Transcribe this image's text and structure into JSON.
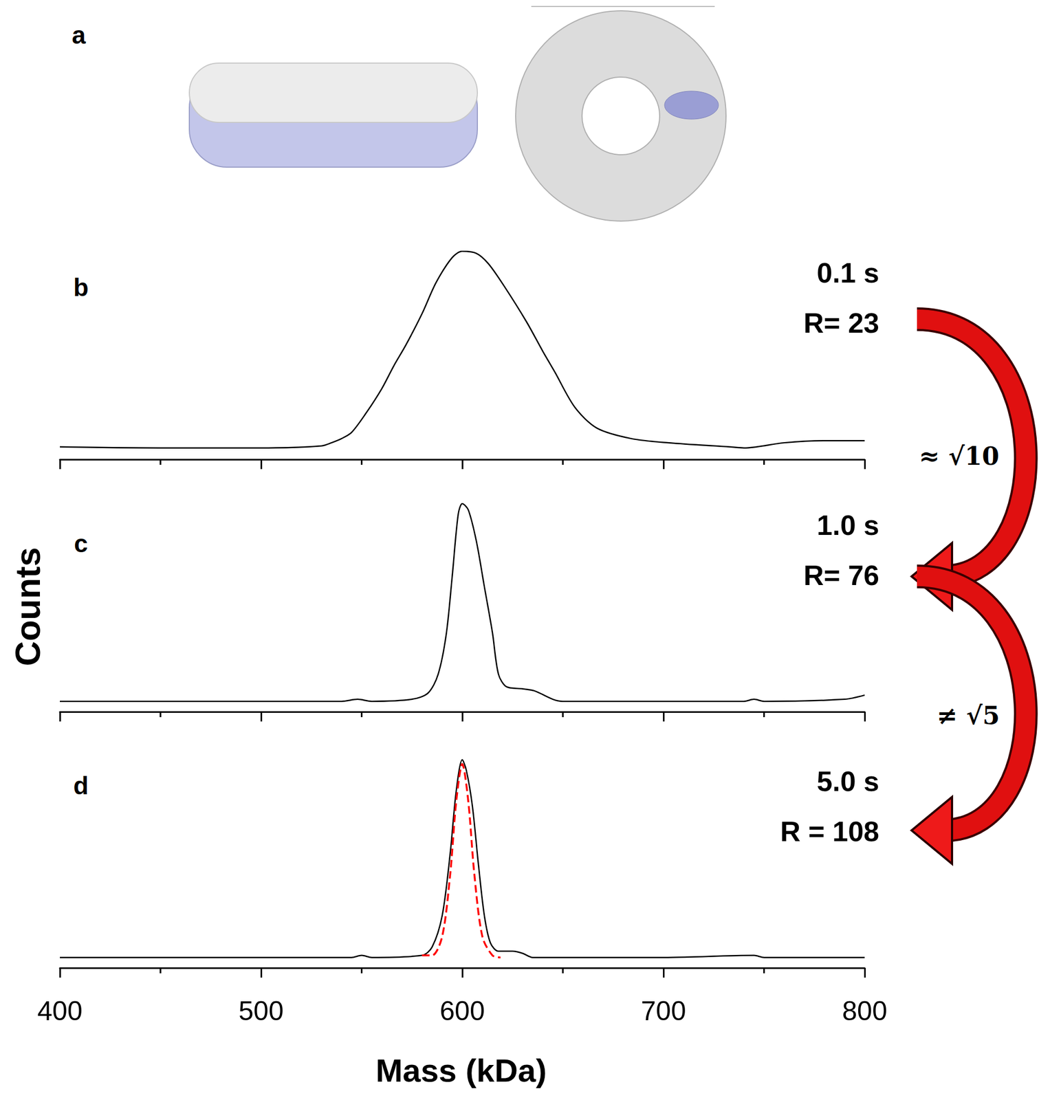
{
  "diagram": {
    "label": "a"
  },
  "arrows": [
    "≈ √10",
    "≠ √5"
  ],
  "chart_data": [
    {
      "type": "line",
      "panel": "b",
      "annotations": [
        "0.1 s",
        "R= 23"
      ],
      "xlim": [
        400,
        800
      ],
      "xticks": [
        400,
        500,
        600,
        700,
        800
      ],
      "ylim": [
        0,
        100
      ],
      "tick_labels": false,
      "series": [
        {
          "color": "#000000",
          "line_style": "solid",
          "x": [
            400,
            450,
            500,
            530,
            535,
            540,
            545,
            552,
            560,
            566,
            572,
            580,
            587,
            595,
            600,
            607,
            613,
            621,
            632,
            640,
            646,
            656,
            667,
            684,
            702,
            733,
            740,
            760,
            780,
            800
          ],
          "values": [
            6,
            5.5,
            5.5,
            6.5,
            8,
            10,
            13,
            22,
            34,
            45,
            55,
            70,
            85,
            97,
            100,
            99,
            94,
            83,
            66,
            52,
            42,
            25,
            15,
            10,
            8,
            6,
            5.5,
            8,
            9,
            9
          ]
        }
      ]
    },
    {
      "type": "line",
      "panel": "c",
      "annotations": [
        "1.0 s",
        "R= 76"
      ],
      "ylabel": "Counts",
      "xlim": [
        400,
        800
      ],
      "xticks": [
        400,
        500,
        600,
        700,
        800
      ],
      "ylim": [
        0,
        100
      ],
      "tick_labels": false,
      "series": [
        {
          "color": "#000000",
          "line_style": "solid",
          "x": [
            400,
            540,
            548,
            555,
            575,
            583,
            588,
            592,
            595,
            598,
            600,
            603,
            607,
            611,
            615,
            618,
            622,
            630,
            636,
            645,
            650,
            700,
            740,
            745,
            750,
            790,
            800
          ],
          "values": [
            5,
            5,
            6,
            5,
            6,
            9,
            18,
            37,
            65,
            95,
            100,
            97,
            82,
            60,
            38,
            18,
            12,
            11,
            10,
            6,
            5,
            5,
            5,
            6,
            5,
            6,
            8
          ]
        }
      ]
    },
    {
      "type": "line",
      "panel": "d",
      "annotations": [
        "5.0 s",
        "R = 108"
      ],
      "xlabel": "Mass (kDa)",
      "xlim": [
        400,
        800
      ],
      "xticks": [
        400,
        500,
        600,
        700,
        800
      ],
      "ylim": [
        0,
        100
      ],
      "tick_labels": "x",
      "series": [
        {
          "color": "#000000",
          "line_style": "solid",
          "x": [
            400,
            545,
            550,
            555,
            580,
            585,
            590,
            594,
            597,
            600,
            602,
            605,
            608,
            611,
            614,
            618,
            625,
            630,
            635,
            700,
            745,
            750,
            800
          ],
          "values": [
            5,
            5,
            6,
            5,
            6,
            10,
            25,
            55,
            85,
            100,
            95,
            78,
            50,
            25,
            12,
            8,
            8,
            7,
            5,
            5,
            6,
            5,
            5
          ]
        },
        {
          "color": "#ff0000",
          "line_style": "dashed",
          "x": [
            580,
            585,
            590,
            594,
            597,
            600,
            603,
            606,
            610,
            615,
            619
          ],
          "values": [
            6,
            6,
            15,
            45,
            80,
            98,
            80,
            45,
            15,
            6,
            5
          ]
        }
      ]
    }
  ]
}
